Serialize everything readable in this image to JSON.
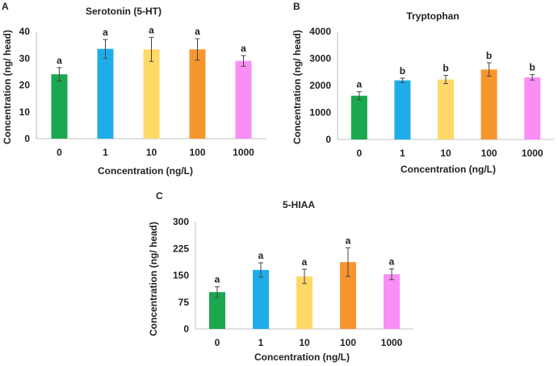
{
  "chart_data": [
    {
      "type": "bar",
      "panel": "A",
      "title": "Serotonin (5-HT)",
      "xlabel": "Concentration (ng/L)",
      "ylabel": "Concentration (ng/ head)",
      "categories": [
        "0",
        "1",
        "10",
        "100",
        "1000"
      ],
      "values": [
        24,
        33.5,
        33.3,
        33.3,
        29
      ],
      "errors": [
        2.5,
        3.5,
        4.5,
        4,
        2
      ],
      "letters": [
        "a",
        "a",
        "a",
        "a",
        "a"
      ],
      "colors": [
        "#1aa84e",
        "#1fadea",
        "#ffd966",
        "#f7962e",
        "#f98ff5"
      ],
      "ylim": [
        0,
        40
      ],
      "yticks": [
        "0",
        "10",
        "20",
        "30",
        "40"
      ],
      "grid": false
    },
    {
      "type": "bar",
      "panel": "B",
      "title": "Tryptophan",
      "xlabel": "Concentration (ng/L)",
      "ylabel": "Concentration (ng/ head)",
      "categories": [
        "0",
        "1",
        "10",
        "100",
        "1000"
      ],
      "values": [
        1620,
        2190,
        2220,
        2590,
        2300
      ],
      "errors": [
        150,
        80,
        150,
        250,
        100
      ],
      "letters": [
        "a",
        "b",
        "b",
        "b",
        "b"
      ],
      "colors": [
        "#1aa84e",
        "#1fadea",
        "#ffd966",
        "#f7962e",
        "#f98ff5"
      ],
      "ylim": [
        0,
        4000
      ],
      "yticks": [
        "0",
        "1000",
        "2000",
        "3000",
        "4000"
      ],
      "grid": false
    },
    {
      "type": "bar",
      "panel": "C",
      "title": "5-HIAA",
      "xlabel": "Concentration (ng/L)",
      "ylabel": "Concentration (ng/ head)",
      "categories": [
        "0",
        "1",
        "10",
        "100",
        "1000"
      ],
      "values": [
        103,
        165,
        147,
        187,
        153
      ],
      "errors": [
        15,
        20,
        20,
        40,
        15
      ],
      "letters": [
        "a",
        "a",
        "a",
        "a",
        "a"
      ],
      "colors": [
        "#1aa84e",
        "#1fadea",
        "#ffd966",
        "#f7962e",
        "#f98ff5"
      ],
      "ylim": [
        0,
        300
      ],
      "yticks": [
        "0",
        "75",
        "150",
        "225",
        "300"
      ],
      "grid": false
    }
  ]
}
